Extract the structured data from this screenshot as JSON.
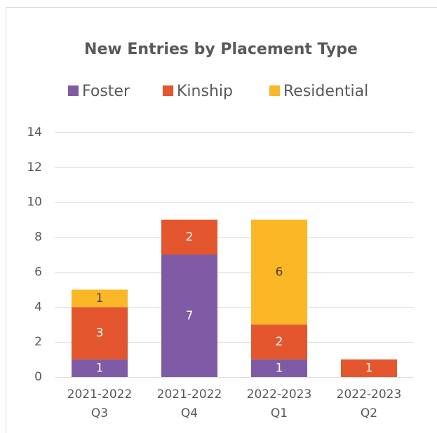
{
  "chart_data": {
    "type": "bar",
    "stacked": true,
    "title": "New Entries by Placement Type",
    "categories": [
      "2021-2022 Q3",
      "2021-2022 Q4",
      "2022-2023 Q1",
      "2022-2023 Q2"
    ],
    "series": [
      {
        "name": "Foster",
        "color": "#7f5ba6",
        "values": [
          1,
          7,
          1,
          0
        ]
      },
      {
        "name": "Kinship",
        "color": "#e4572e",
        "values": [
          3,
          2,
          2,
          1
        ]
      },
      {
        "name": "Residential",
        "color": "#fbb726",
        "values": [
          1,
          0,
          6,
          0
        ]
      }
    ],
    "ylim": [
      0,
      14
    ],
    "yticks": [
      0,
      2,
      4,
      6,
      8,
      10,
      12,
      14
    ],
    "grid": true,
    "legend": "top"
  }
}
